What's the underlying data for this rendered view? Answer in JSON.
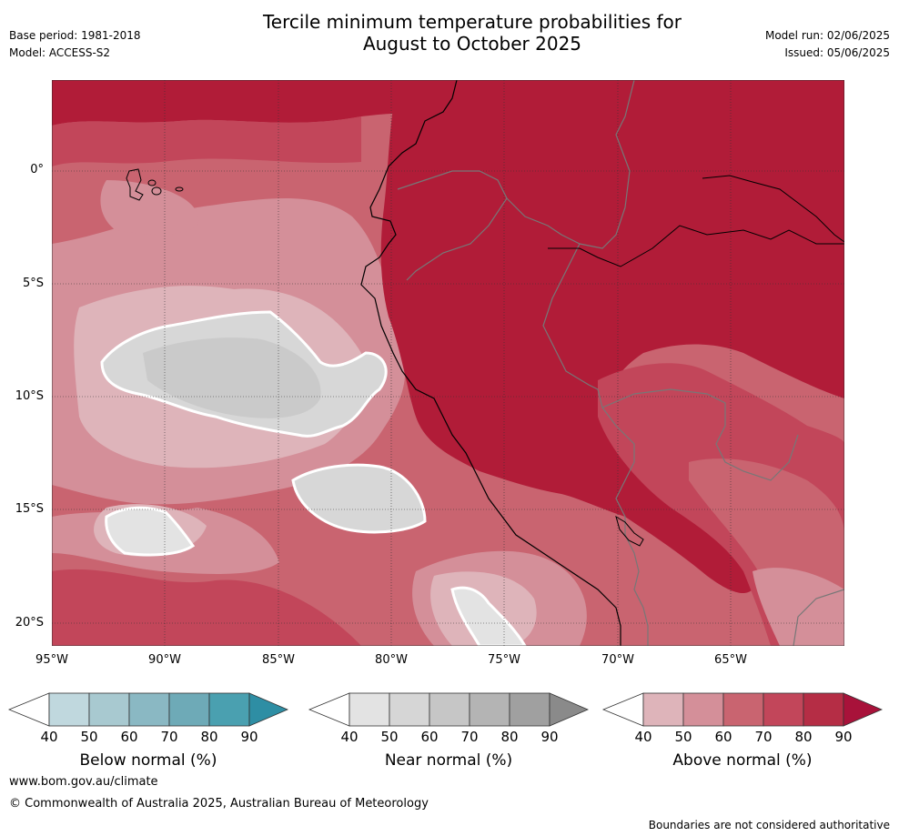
{
  "header": {
    "title_line1": "Tercile minimum temperature probabilities for",
    "title_line2": "August to October 2025",
    "base_period": "Base period: 1981-2018",
    "model": "Model: ACCESS-S2",
    "model_run": "Model run: 02/06/2025",
    "issued": "Issued: 05/06/2025"
  },
  "map": {
    "lat_labels": [
      "0°",
      "5°S",
      "10°S",
      "15°S",
      "20°S"
    ],
    "lon_labels": [
      "95°W",
      "90°W",
      "85°W",
      "80°W",
      "75°W",
      "70°W",
      "65°W"
    ],
    "colors": {
      "above_90": "#b11c38",
      "above_80": "#c2465a",
      "above_70": "#c96470",
      "above_60": "#d48f99",
      "above_50": "#deb4ba",
      "near_60": "#cacaca",
      "near_50": "#d7d7d7",
      "near_40": "#e3e3e3"
    }
  },
  "colorbars": [
    {
      "label": "Below normal (%)",
      "ticks": [
        "40",
        "50",
        "60",
        "70",
        "80",
        "90"
      ],
      "colors": [
        "#c0d8de",
        "#a8c9d0",
        "#8ab8c3",
        "#6eaab7",
        "#4aa0b0",
        "#2e8ea4"
      ]
    },
    {
      "label": "Near normal (%)",
      "ticks": [
        "40",
        "50",
        "60",
        "70",
        "80",
        "90"
      ],
      "colors": [
        "#e3e3e3",
        "#d6d6d6",
        "#c6c6c6",
        "#b4b4b4",
        "#a0a0a0",
        "#8a8a8a"
      ]
    },
    {
      "label": "Above normal (%)",
      "ticks": [
        "40",
        "50",
        "60",
        "70",
        "80",
        "90"
      ],
      "colors": [
        "#deb4ba",
        "#d48f99",
        "#c96470",
        "#c2465a",
        "#b52d45",
        "#a8123a"
      ]
    }
  ],
  "footer": {
    "website": "www.bom.gov.au/climate",
    "copyright": "© Commonwealth of Australia 2025, Australian Bureau of Meteorology",
    "disclaimer": "Boundaries are not considered authoritative"
  }
}
